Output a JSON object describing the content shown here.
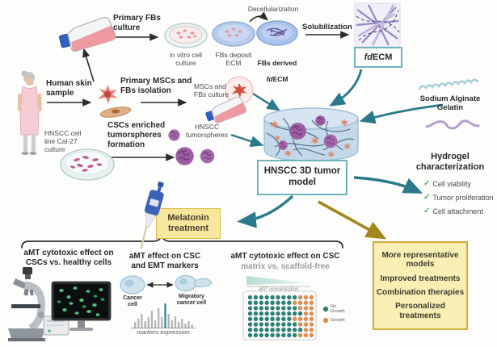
{
  "colors": {
    "teal_arrow": "#2b7a8c",
    "gold_arrow": "#a5851e",
    "box_border_teal": "#6fb3bf",
    "yellow_fill": "#f6e79d",
    "yellow_border": "#d9b945",
    "check_green": "#3db37a",
    "bar_teal": "#2f8d99",
    "bar_gray": "#b4b4b4",
    "well_teal": "#2e8076",
    "well_orange": "#dd8f4d"
  },
  "icons": {
    "check_glyph": "✓"
  },
  "top_flow": {
    "flask_label": "Primary FBs\nculture",
    "decellularization": "Decellularization",
    "solubilization": "Solubilization",
    "dish1_label": "in vitro cell\nculture",
    "dish2_label": "FBs deposit\nECM",
    "dish3_line1": "FBs derived",
    "dish3_italic": "fd",
    "dish3_rest": "ECM",
    "fdecm_italic": "fd",
    "fdecm_rest": "ECM"
  },
  "skin_flow": {
    "human_skin": "Human skin\nsample",
    "isolation": "Primary MSCs and\nFBs isolation",
    "culture": "MSCs and\nFBs culture"
  },
  "hnscc_flow": {
    "cell_line": "HNSCC cell\nline Cal-27\nculture",
    "formation": "CSCs enriched\ntumorspheres\nformation",
    "tumorspheres": "HNSCC\ntumorspheres"
  },
  "model": {
    "box_label": "HNSCC 3D tumor\nmodel",
    "sodium": "Sodium Alginate\nGelatin"
  },
  "hydrogel": {
    "title": "Hydrogel\ncharacterization",
    "items": [
      "Cell viability",
      "Tumor proliferation",
      "Cell attachment"
    ]
  },
  "melatonin": {
    "label": "Melatonin\ntreatment"
  },
  "panels": {
    "p1_title": "aMT cytotoxic effect on\nCSCs vs. healthy cells",
    "p2_title": "aMT effect on CSC\nand EMT markers",
    "p3_title_black": "aMT cytotoxic effect on CSC",
    "p3_title_gray": "matrix vs. scaffold-free",
    "cancer_cell": "Cancer\ncell",
    "migratory_cell": "Migratory\ncancer cell",
    "markers_axis": "markers expression",
    "amt_concentration": "aMT concentration",
    "legend_no_growth": "No\nGrowth",
    "legend_growth": "Growth",
    "marker_bars": {
      "heights": [
        7,
        11,
        17,
        8,
        13,
        21,
        9,
        24,
        13,
        30,
        17,
        9,
        14,
        7,
        11,
        5,
        8,
        4
      ],
      "highlight_index": 9
    },
    "well_plate": {
      "rows": 8,
      "cols": 12,
      "transition_by_row": [
        9,
        8,
        9,
        10,
        8,
        9,
        10,
        9
      ]
    }
  },
  "outcomes": {
    "items": [
      "More representative\nmodels",
      "Improved treatments",
      "Combination therapies",
      "Personalized treatments"
    ]
  }
}
